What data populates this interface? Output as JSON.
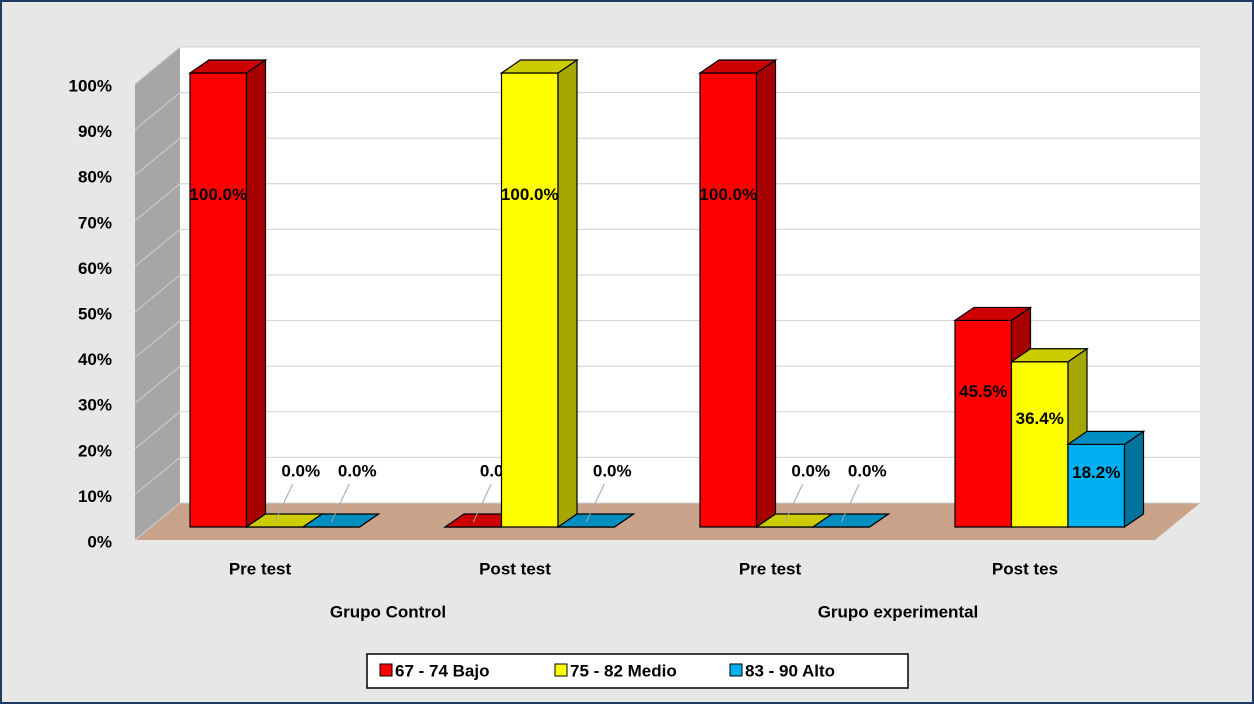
{
  "chart_data": {
    "type": "bar3d",
    "categories": [
      "Pre test",
      "Post test",
      "Pre test",
      "Post tes"
    ],
    "group_labels": [
      "Grupo Control",
      "Grupo experimental"
    ],
    "series": [
      {
        "name": "67 - 74 Bajo",
        "color": "#ff0000",
        "values": [
          100,
          0,
          100,
          45.5
        ],
        "value_labels": [
          "100.0%",
          "0.0%",
          "100.0%",
          "45.5%"
        ]
      },
      {
        "name": "75 - 82 Medio",
        "color": "#ffff00",
        "values": [
          0,
          100,
          0,
          36.4
        ],
        "value_labels": [
          "0.0%",
          "100.0%",
          "0.0%",
          "36.4%"
        ]
      },
      {
        "name": "83 - 90 Alto",
        "color": "#00b0f0",
        "values": [
          0,
          0,
          0,
          18.2
        ],
        "value_labels": [
          "0.0%",
          "0.0%",
          "0.0%",
          "18.2%"
        ]
      }
    ],
    "ylim": [
      0,
      100
    ],
    "yticks": [
      {
        "value": 0,
        "label": "0%"
      },
      {
        "value": 10,
        "label": "10%"
      },
      {
        "value": 20,
        "label": "20%"
      },
      {
        "value": 30,
        "label": "30%"
      },
      {
        "value": 40,
        "label": "40%"
      },
      {
        "value": 50,
        "label": "50%"
      },
      {
        "value": 60,
        "label": "60%"
      },
      {
        "value": 70,
        "label": "70%"
      },
      {
        "value": 80,
        "label": "80%"
      },
      {
        "value": 90,
        "label": "90%"
      },
      {
        "value": 100,
        "label": "100%"
      }
    ],
    "grid": true,
    "legend": "bottom"
  }
}
